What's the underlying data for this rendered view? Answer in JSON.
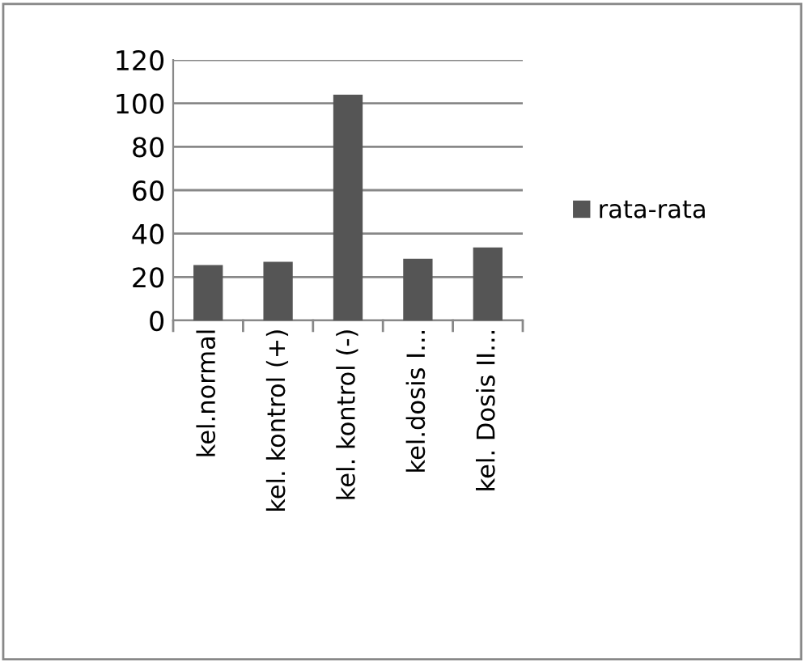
{
  "chart_data": {
    "type": "bar",
    "categories": [
      "kel.normal",
      "kel. kontrol (+)",
      "kel. kontrol (-)",
      "kel.dosis I...",
      "kel. Dosis II..."
    ],
    "series": [
      {
        "name": "rata-rata",
        "color": "#555555",
        "values": [
          25.5,
          27,
          104,
          28.4,
          33.6
        ]
      }
    ],
    "ylim": [
      0,
      120
    ],
    "yticks": [
      0,
      20,
      40,
      60,
      80,
      100,
      120
    ],
    "grid": "y",
    "legend": "right"
  }
}
